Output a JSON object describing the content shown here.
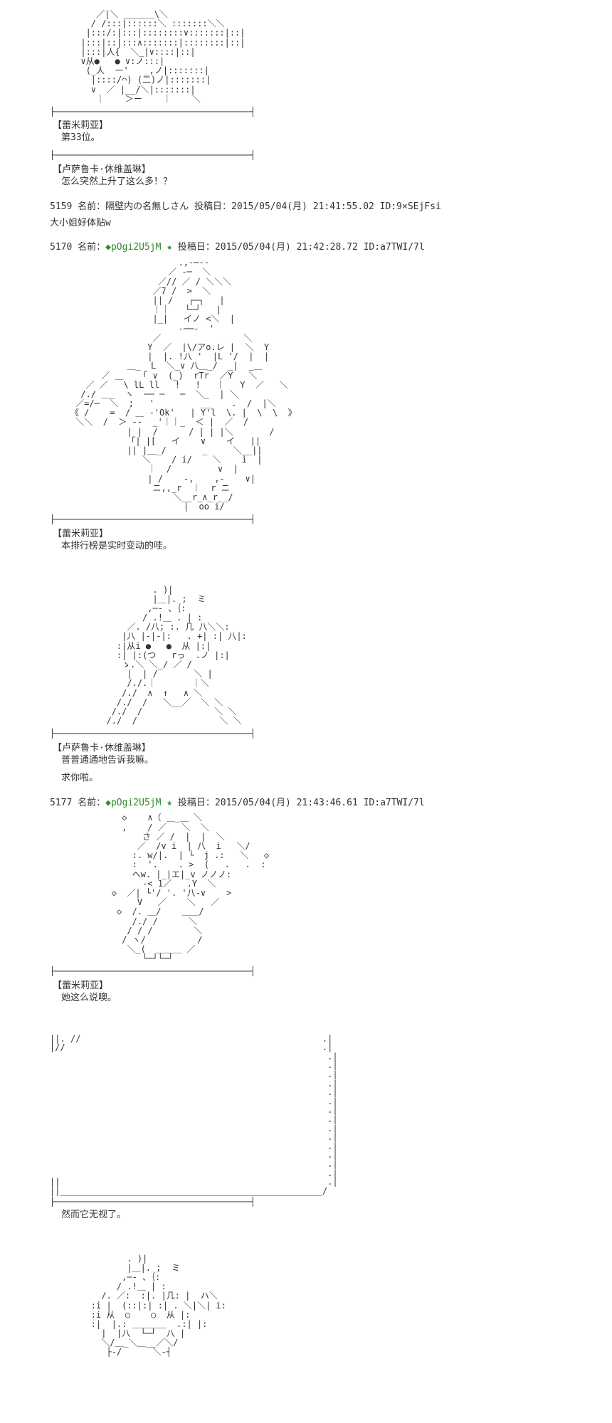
{
  "divider_line": "├──────────────────────────────────────┤",
  "sections": [
    {
      "speaker": "【蕾米莉亚】",
      "dialogue": "第33位。"
    },
    {
      "speaker": "【卢萨鲁卡·休维盖琳】",
      "dialogue": "怎么突然上升了这么多！？"
    }
  ],
  "posts": [
    {
      "num": "5159",
      "name_label": "名前：",
      "name": "隔壁内の名無しさん",
      "date_label": "投稿日：",
      "date": "2015/05/04(月) 21:41:55.02 ID:9×SEjFsi",
      "body": "大小姐好体贴w"
    },
    {
      "num": "5170",
      "name_label": "名前：",
      "trip": "◆pOgi2U5jM",
      "star": "★",
      "date_label": "投稿日：",
      "date": "2015/05/04(月) 21:42:28.72 ID:a7TWI/7l"
    }
  ],
  "section2": [
    {
      "speaker": "【蕾米莉亚】",
      "dialogue": "本排行榜是实时变动的哇。"
    },
    {
      "speaker": "【卢萨鲁卡·休维盖琳】",
      "dialogue": "普普通通地告诉我嘛。",
      "dialogue2": "求你啦。"
    }
  ],
  "post3": {
    "num": "5177",
    "name_label": "名前：",
    "trip": "◆pOgi2U5jM",
    "star": "★",
    "date_label": "投稿日：",
    "date": "2015/05/04(月) 21:43:46.61 ID:a7TWI/7l"
  },
  "section3": [
    {
      "speaker": "【蕾米莉亚】",
      "dialogue": "她这么说噢。"
    }
  ],
  "section4": {
    "text": "然而它无视了。"
  },
  "ascii": {
    "art0_top": "         ／|＼ ＿_＿＿\\＼\n        / /:::|::::::＼ :::::::＼＼\n       |:::/:|:::|::::::::∨:::::::|::|\n      |:::|::|:::∧:::::::|::::::::|::|\n      |:::|人{  ＼_|∨::::|::|\n      ∨从●   ● ∨:ノ:::|\n       (_人  ー'   _,ノ|:::::::|\n        |::::/⌒) (二)ノ|:::::::|\n        ∨  ／ |__/＼|:::::::|\n         ｜    ＞ー    ｜    ＼",
    "art1": "                         .,-─--\n                       ／ -─  ＼\n                     ／// ／ / ＼＼＼\n                    ／7 /  >  ＼     \n                    || /   ┌─┐   |\n                    ｜｜   └─┘   |\n                    |_|   イノ <＼  |\n                         -──-  '\n                    ／                ＼\n                   Y  ／  |\\/アo.レ |  ＼  Y\n                   |  |. !八 '  |L '/  |  |\n               ＿_  L  ＼_∨ 八＿_/  _|  _＿\n          ／ ＿   「 ∨  (_)  rTr  ／Y   ＼\n       ／ ／   \\ lL ll   !   !   ｜   Y  ／   ＼\n      /./ ＿_  ヽ  ── ─   ─  ＼_  | ＼\n     ／=/─  ＼  ;   '         __    .  /  |＼\n    《 /    =  / ＿ -'Ok'   | Y'l  \\. |  \\  \\  》\n     ＼＼  /  ＞ ‐-  _'｜｜_  ＜ |  ／  /\n               | |  /      / | | |＼       /\n               「| |[   イ    ∨    イ   ||\n               || |＿_/       _     ＼__||\n                  ＼    / i/    ＼    i  |\n                   ｜  /         ∨  |\n                   | /    -,    ,-    ∨|\n                    ニ,,_r  ｜  r ニ\n                        ＼__r_∧_r__/\n                          |  oo i/",
    "art2": "                    . )|\n                    |＿|. ;  ミ\n                   ,─- 、｛:\n                  / .!＿ . | :\n               ／. /八; :. 几 八＼＼:\n              |八 |-|-|:   . +| :| 八|:\n             :|从i ●   ●  从 |:|\n             :| |:(つ   rっ  .ノ |:|\n              ゝ.＼ ＼_/ ／ /\n               |  | /       ＼ |\n               /./.｜       ｜＼\n              /./  ∧  ↑   ∧ ＼\n             /./  /   ＼__／  ＼ ＼\n            /./  /              ＼ ＼\n           /./  /                ＼ ＼",
    "art3": "              ◇    ∧（ ＿_＿ ＼\n              ,    / ／   ＼  ＼\n                  さ ／ /  |  |  ＼\n                 ／  /v i  | 八  i   ＼/\n                :. w/|.  | └  j .:   ＼   ◇\n                :  '.    . >  (   .   .  :\n                ヘw. |_|エ|_v ノノノ:\n                  -< 1／   .Y  ＼\n            ◇  ／| └'/ '. '八-∨    >\n                 V   ／    ＼   ／\n             ◇  /. ＿/    ＿＿/\n                /./ /      ＼\n               / / /        ＼\n              / ヽ/          /\n               ＼_(  ＿＿＿ ／\n                  └─┘└─┘",
    "box": "||. //                                               .|\n|//                                                  .|\n                                                      .|\n                                                      .|\n                                                      .|\n                                                      .|\n                                                      .|\n                                                      .|\n                                                      .|\n                                                      .|\n                                                      .|\n                                                      .|\n                                                      .|\n                                                      .|\n                                                      .|\n                                                      .|\n||                                                    .|\n||___________________________________________________/",
    "art5": "               . )|\n               |＿|. ;  ミ\n              ,─- 、｛:\n             / .!＿ | :\n          /. ／:  :|. |几: |  ハ＼\n        :i |  (::|:| :| . ＼|＼| i:\n        :i 从  ○    ○  从 |:\n        :|  |.: ＿＿＿＿  .:| |:\n          |  |八  └─┘  八 |\n          ＼/＿_＼＿__／＼/\n           ├-/      ＼-┤"
  }
}
